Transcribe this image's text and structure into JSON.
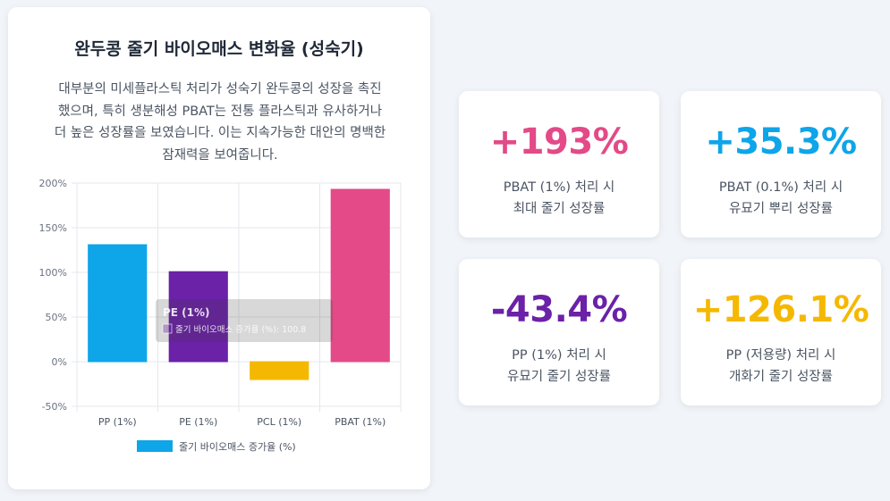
{
  "chart_card": {
    "title": "완두콩 줄기 바이오매스 변화율 (성숙기)",
    "description_lines": [
      "대부분의 미세플라스틱 처리가 성숙기 완두콩의 성장을 촉진",
      "했으며, 특히 생분해성 PBAT는 전통 플라스틱과 유사하거나",
      "더 높은 성장률을 보였습니다. 이는 지속가능한 대안의 명백한",
      "잠재력을 보여줍니다."
    ]
  },
  "chart_data": {
    "type": "bar",
    "categories": [
      "PP (1%)",
      "PE (1%)",
      "PCL (1%)",
      "PBAT (1%)"
    ],
    "series": [
      {
        "name": "줄기 바이오매스 증가율 (%)",
        "values": [
          131,
          100.8,
          -20,
          193
        ],
        "colors": [
          "#0ea5e9",
          "#6b21a8",
          "#f5b800",
          "#e34a87"
        ]
      }
    ],
    "ylim": [
      -50,
      200
    ],
    "yticks": [
      -50,
      0,
      50,
      100,
      150,
      200
    ],
    "ytick_labels": [
      "-50%",
      "0%",
      "50%",
      "100%",
      "150%",
      "200%"
    ],
    "legend_position": "bottom",
    "grid": true,
    "tooltip": {
      "title": "PE (1%)",
      "body": "줄기 바이오매스 증가율 (%): 100.8",
      "swatch_color": "#6b21a8"
    }
  },
  "stats": [
    {
      "value": "+193%",
      "color": "#e34a87",
      "label_lines": [
        "PBAT (1%) 처리 시",
        "최대 줄기 성장률"
      ]
    },
    {
      "value": "+35.3%",
      "color": "#0ea5e9",
      "label_lines": [
        "PBAT (0.1%) 처리 시",
        "유묘기 뿌리 성장률"
      ]
    },
    {
      "value": "-43.4%",
      "color": "#6b21a8",
      "label_lines": [
        "PP (1%) 처리 시",
        "유묘기 줄기 성장률"
      ]
    },
    {
      "value": "+126.1%",
      "color": "#f5b800",
      "label_lines": [
        "PP (저용량) 처리 시",
        "개화기 줄기 성장률"
      ]
    }
  ]
}
